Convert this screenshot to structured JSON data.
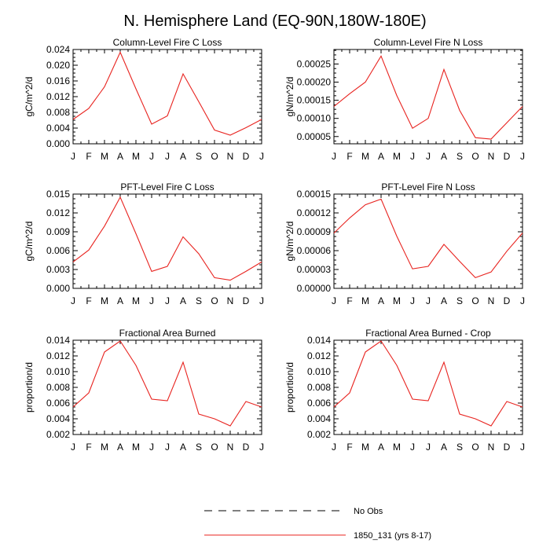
{
  "figure_title": "N. Hemisphere Land (EQ-90N,180W-180E)",
  "legend": [
    {
      "label": "No Obs",
      "style": "dashed",
      "color": "#000000"
    },
    {
      "label": "1850_131 (yrs 8-17)",
      "style": "solid",
      "color": "#e8231f"
    }
  ],
  "colors": {
    "series": "#e8231f",
    "axis": "#000000"
  },
  "chart_data": [
    {
      "type": "line",
      "title": "Column-Level Fire C Loss",
      "ylabel": "gC/m^2/d",
      "categories": [
        "J",
        "F",
        "M",
        "A",
        "M",
        "J",
        "J",
        "A",
        "S",
        "O",
        "N",
        "D",
        "J"
      ],
      "ylim": [
        0,
        0.024
      ],
      "yticks": [
        "0.000",
        "0.004",
        "0.008",
        "0.012",
        "0.016",
        "0.020",
        "0.024"
      ],
      "series": [
        {
          "name": "1850_131 (yrs 8-17)",
          "values": [
            0.0062,
            0.009,
            0.0145,
            0.0233,
            0.014,
            0.005,
            0.0071,
            0.0178,
            0.0107,
            0.0035,
            0.0022,
            0.0041,
            0.0062
          ]
        }
      ]
    },
    {
      "type": "line",
      "title": "Column-Level Fire N Loss",
      "ylabel": "gN/m^2/d",
      "categories": [
        "J",
        "F",
        "M",
        "A",
        "M",
        "J",
        "J",
        "A",
        "S",
        "O",
        "N",
        "D",
        "J"
      ],
      "ylim": [
        3e-05,
        0.00029
      ],
      "yticks": [
        "0.00005",
        "0.00010",
        "0.00015",
        "0.00020",
        "0.00025"
      ],
      "series": [
        {
          "name": "1850_131 (yrs 8-17)",
          "values": [
            0.000133,
            0.000168,
            0.0002,
            0.000272,
            0.000163,
            7.3e-05,
            0.0001,
            0.000235,
            0.000122,
            4.7e-05,
            4.3e-05,
            8.8e-05,
            0.000133
          ]
        }
      ]
    },
    {
      "type": "line",
      "title": "PFT-Level Fire C Loss",
      "ylabel": "gC/m^2/d",
      "categories": [
        "J",
        "F",
        "M",
        "A",
        "M",
        "J",
        "J",
        "A",
        "S",
        "O",
        "N",
        "D",
        "J"
      ],
      "ylim": [
        0,
        0.015
      ],
      "yticks": [
        "0.000",
        "0.003",
        "0.006",
        "0.009",
        "0.012",
        "0.015"
      ],
      "series": [
        {
          "name": "1850_131 (yrs 8-17)",
          "values": [
            0.0042,
            0.0061,
            0.0099,
            0.0145,
            0.0087,
            0.0027,
            0.0035,
            0.0082,
            0.0055,
            0.0017,
            0.0013,
            0.0027,
            0.0042
          ]
        }
      ]
    },
    {
      "type": "line",
      "title": "PFT-Level Fire N Loss",
      "ylabel": "gN/m^2/d",
      "categories": [
        "J",
        "F",
        "M",
        "A",
        "M",
        "J",
        "J",
        "A",
        "S",
        "O",
        "N",
        "D",
        "J"
      ],
      "ylim": [
        0,
        0.00015
      ],
      "yticks": [
        "0.00000",
        "0.00003",
        "0.00006",
        "0.00009",
        "0.00012",
        "0.00015"
      ],
      "series": [
        {
          "name": "1850_131 (yrs 8-17)",
          "values": [
            8.8e-05,
            0.000112,
            0.000133,
            0.000142,
            8.3e-05,
            3.1e-05,
            3.5e-05,
            7e-05,
            4.3e-05,
            1.7e-05,
            2.6e-05,
            5.9e-05,
            8.8e-05
          ]
        }
      ]
    },
    {
      "type": "line",
      "title": "Fractional Area Burned",
      "ylabel": "proportion/d",
      "categories": [
        "J",
        "F",
        "M",
        "A",
        "M",
        "J",
        "J",
        "A",
        "S",
        "O",
        "N",
        "D",
        "J"
      ],
      "ylim": [
        0.002,
        0.014
      ],
      "yticks": [
        "0.002",
        "0.004",
        "0.006",
        "0.008",
        "0.010",
        "0.012",
        "0.014"
      ],
      "series": [
        {
          "name": "1850_131 (yrs 8-17)",
          "values": [
            0.0055,
            0.0073,
            0.0125,
            0.0139,
            0.0108,
            0.0065,
            0.0063,
            0.0112,
            0.0046,
            0.004,
            0.0031,
            0.0062,
            0.0055
          ]
        }
      ]
    },
    {
      "type": "line",
      "title": "Fractional Area Burned - Crop",
      "ylabel": "proportion/d",
      "categories": [
        "J",
        "F",
        "M",
        "A",
        "M",
        "J",
        "J",
        "A",
        "S",
        "O",
        "N",
        "D",
        "J"
      ],
      "ylim": [
        0.002,
        0.014
      ],
      "yticks": [
        "0.002",
        "0.004",
        "0.006",
        "0.008",
        "0.010",
        "0.012",
        "0.014"
      ],
      "series": [
        {
          "name": "1850_131 (yrs 8-17)",
          "values": [
            0.0055,
            0.0073,
            0.0125,
            0.0139,
            0.0108,
            0.0065,
            0.0063,
            0.0112,
            0.0046,
            0.004,
            0.0031,
            0.0062,
            0.0055
          ]
        }
      ]
    }
  ]
}
